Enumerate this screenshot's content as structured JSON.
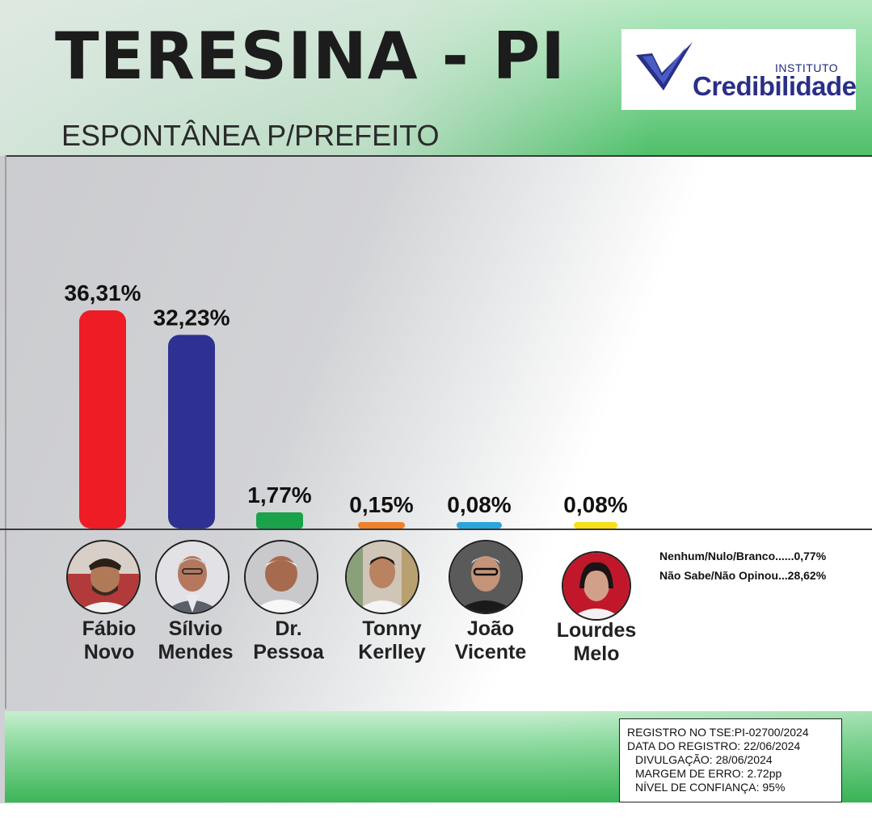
{
  "header": {
    "title": "TERESINA - PI",
    "subtitle": "ESPONTÂNEA P/PREFEITO"
  },
  "logo": {
    "small_text": "INSTITUTO",
    "brand_text": "Credibilidade"
  },
  "chart_data": {
    "type": "bar",
    "title": "ESPONTÂNEA P/PREFEITO",
    "categories": [
      "Fábio Novo",
      "Sílvio Mendes",
      "Dr. Pessoa",
      "Tonny Kerlley",
      "João Vicente",
      "Lourdes Melo"
    ],
    "values": [
      36.31,
      32.23,
      1.77,
      0.15,
      0.08,
      0.08
    ],
    "value_labels": [
      "36,31%",
      "32,23%",
      "1,77%",
      "0,15%",
      "0,08%",
      "0,08%"
    ],
    "colors": [
      "#ee1c25",
      "#2e3192",
      "#1aa34a",
      "#f0802a",
      "#2aa6dc",
      "#f7e018"
    ],
    "unit": "%",
    "grid": false,
    "legend": "none"
  },
  "candidates": [
    {
      "line1": "Fábio",
      "line2": "Novo"
    },
    {
      "line1": "Sílvio",
      "line2": "Mendes"
    },
    {
      "line1": "Dr.",
      "line2": "Pessoa"
    },
    {
      "line1": "Tonny",
      "line2": "Kerlley"
    },
    {
      "line1": "João",
      "line2": "Vicente"
    },
    {
      "line1": "Lourdes",
      "line2": "Melo"
    }
  ],
  "others": {
    "line1": "Nenhum/Nulo/Branco......0,77%",
    "line2": "Não Sabe/Não Opinou...28,62%"
  },
  "registration": {
    "line1": "REGISTRO NO TSE:PI-02700/2024",
    "line2": "DATA DO REGISTRO: 22/06/2024",
    "line3": "DIVULGAÇÃO: 28/06/2024",
    "line4": "MARGEM DE ERRO: 2.72pp",
    "line5": "NÍVEL DE CONFIANÇA: 95%"
  }
}
